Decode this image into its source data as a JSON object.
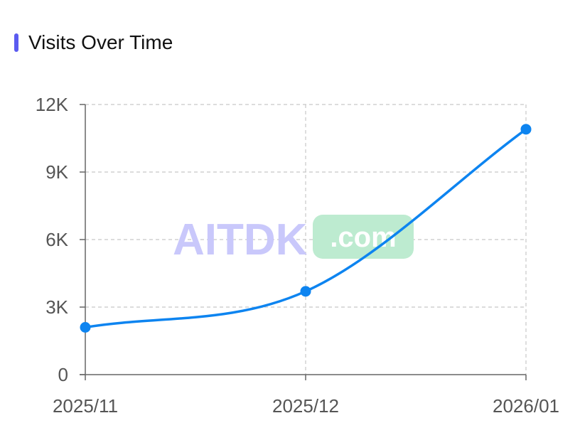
{
  "header": {
    "title": "Visits Over Time",
    "accent_color": "#5b5bf0"
  },
  "watermark": {
    "brand": "AITDK",
    "suffix": ".com",
    "brand_color": "#c9c8fb",
    "suffix_bg": "#bdebd0",
    "suffix_color": "#ffffff"
  },
  "colors": {
    "line": "#0d84f0",
    "grid": "#c8c8c8",
    "axis": "#666666"
  },
  "chart_data": {
    "type": "line",
    "categories": [
      "2025/11",
      "2025/12",
      "2026/01"
    ],
    "series": [
      {
        "values": [
          2100,
          3700,
          10900
        ]
      }
    ],
    "ylim": [
      0,
      12000
    ],
    "yticks": [
      0,
      3000,
      6000,
      9000,
      12000
    ],
    "ytick_labels": [
      "0",
      "3K",
      "6K",
      "9K",
      "12K"
    ],
    "grid": true,
    "smooth": true,
    "legend": "none"
  }
}
